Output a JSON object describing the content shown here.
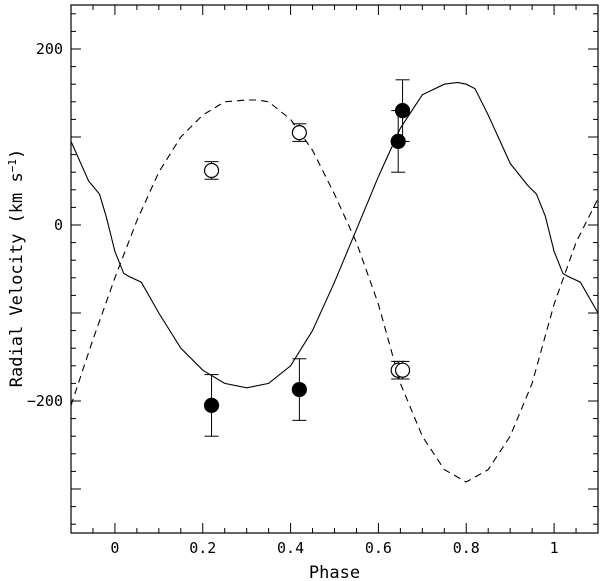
{
  "chart_data": {
    "type": "scatter",
    "xlabel": "Phase",
    "ylabel": "Radial Velocity (km s",
    "ylabel_sup": "−1",
    "ylabel_close": ")",
    "xlim": [
      -0.1,
      1.1
    ],
    "ylim": [
      -350,
      250
    ],
    "x_ticks": [
      0,
      0.2,
      0.4,
      0.6,
      0.8,
      1
    ],
    "x_tick_labels": [
      "0",
      "0.2",
      "0.4",
      "0.6",
      "0.8",
      "1"
    ],
    "y_ticks": [
      -200,
      0,
      200
    ],
    "y_tick_labels": [
      "−200",
      "0",
      "200"
    ],
    "grid": false,
    "series": [
      {
        "style": "filled-circle",
        "x": [
          0.22,
          0.42,
          0.645,
          0.655
        ],
        "y": [
          -205,
          -187,
          95,
          130
        ],
        "err": [
          35,
          35,
          35,
          35
        ]
      },
      {
        "style": "open-circle",
        "x": [
          0.22,
          0.42,
          0.645,
          0.655
        ],
        "y": [
          62,
          105,
          -165,
          -165
        ],
        "err": [
          10,
          10,
          10,
          10
        ]
      },
      {
        "style": "solid-line",
        "x": [
          -0.1,
          -0.06,
          -0.035,
          -0.02,
          -0.01,
          0.0,
          0.02,
          0.03,
          0.06,
          0.1,
          0.15,
          0.2,
          0.25,
          0.3,
          0.35,
          0.4,
          0.45,
          0.5,
          0.55,
          0.6,
          0.65,
          0.7,
          0.75,
          0.78,
          0.8,
          0.82,
          0.85,
          0.9,
          0.94,
          0.96,
          0.98,
          0.99,
          1.0,
          1.02,
          1.03,
          1.06,
          1.1
        ],
        "y": [
          95,
          50,
          35,
          10,
          -10,
          -30,
          -55,
          -58,
          -65,
          -100,
          -140,
          -165,
          -180,
          -185,
          -180,
          -160,
          -120,
          -65,
          -5,
          55,
          110,
          148,
          160,
          162,
          160,
          155,
          125,
          70,
          45,
          35,
          10,
          -10,
          -30,
          -55,
          -58,
          -65,
          -100
        ]
      },
      {
        "style": "dashed-line",
        "x": [
          -0.1,
          -0.05,
          0.0,
          0.05,
          0.1,
          0.15,
          0.2,
          0.25,
          0.3,
          0.325,
          0.35,
          0.4,
          0.45,
          0.5,
          0.55,
          0.6,
          0.65,
          0.7,
          0.75,
          0.8,
          0.85,
          0.9,
          0.95,
          1.0,
          1.05,
          1.1
        ],
        "y": [
          -205,
          -130,
          -60,
          5,
          60,
          100,
          125,
          140,
          142,
          142,
          140,
          120,
          85,
          35,
          -20,
          -90,
          -180,
          -240,
          -278,
          -292,
          -278,
          -240,
          -180,
          -90,
          -20,
          30
        ]
      }
    ]
  }
}
